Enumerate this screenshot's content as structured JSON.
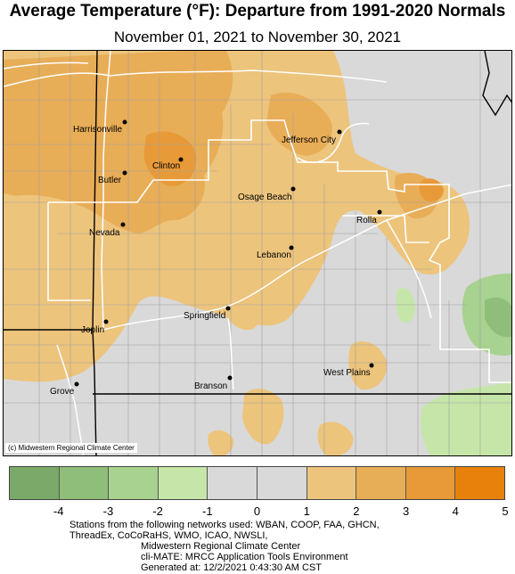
{
  "title": "Average Temperature (°F): Departure from 1991-2020 Normals",
  "subtitle": "November 01, 2021 to November 30, 2021",
  "credit": "(c) Midwestern Regional Climate Center",
  "cities": [
    {
      "name": "Harrisonville"
    },
    {
      "name": "Jefferson City"
    },
    {
      "name": "Clinton"
    },
    {
      "name": "Butler"
    },
    {
      "name": "Osage Beach"
    },
    {
      "name": "Rolla"
    },
    {
      "name": "Nevada"
    },
    {
      "name": "Lebanon"
    },
    {
      "name": "Springfield"
    },
    {
      "name": "Joplin"
    },
    {
      "name": "West Plains"
    },
    {
      "name": "Branson"
    },
    {
      "name": "Grove"
    }
  ],
  "legend": {
    "colors": [
      "#7aa96a",
      "#8fbe7a",
      "#a8d28f",
      "#c5e6a8",
      "#d9d9d9",
      "#d9d9d9",
      "#edc47c",
      "#e8ad57",
      "#e89a38",
      "#e8810b"
    ],
    "ticks": [
      "-4",
      "-3",
      "-2",
      "-1",
      "0",
      "1",
      "2",
      "3",
      "4",
      "5"
    ]
  },
  "footer": {
    "line1": "Stations from the following networks used: WBAN, COOP, FAA, GHCN,",
    "line2": "ThreadEx, CoCoRaHS, WMO, ICAO, NWSLI,",
    "line3": "Midwestern Regional Climate Center",
    "line4": "cli-MATE: MRCC Application Tools Environment",
    "line5": "Generated at: 12/2/2021 0:43:30 AM CST"
  }
}
